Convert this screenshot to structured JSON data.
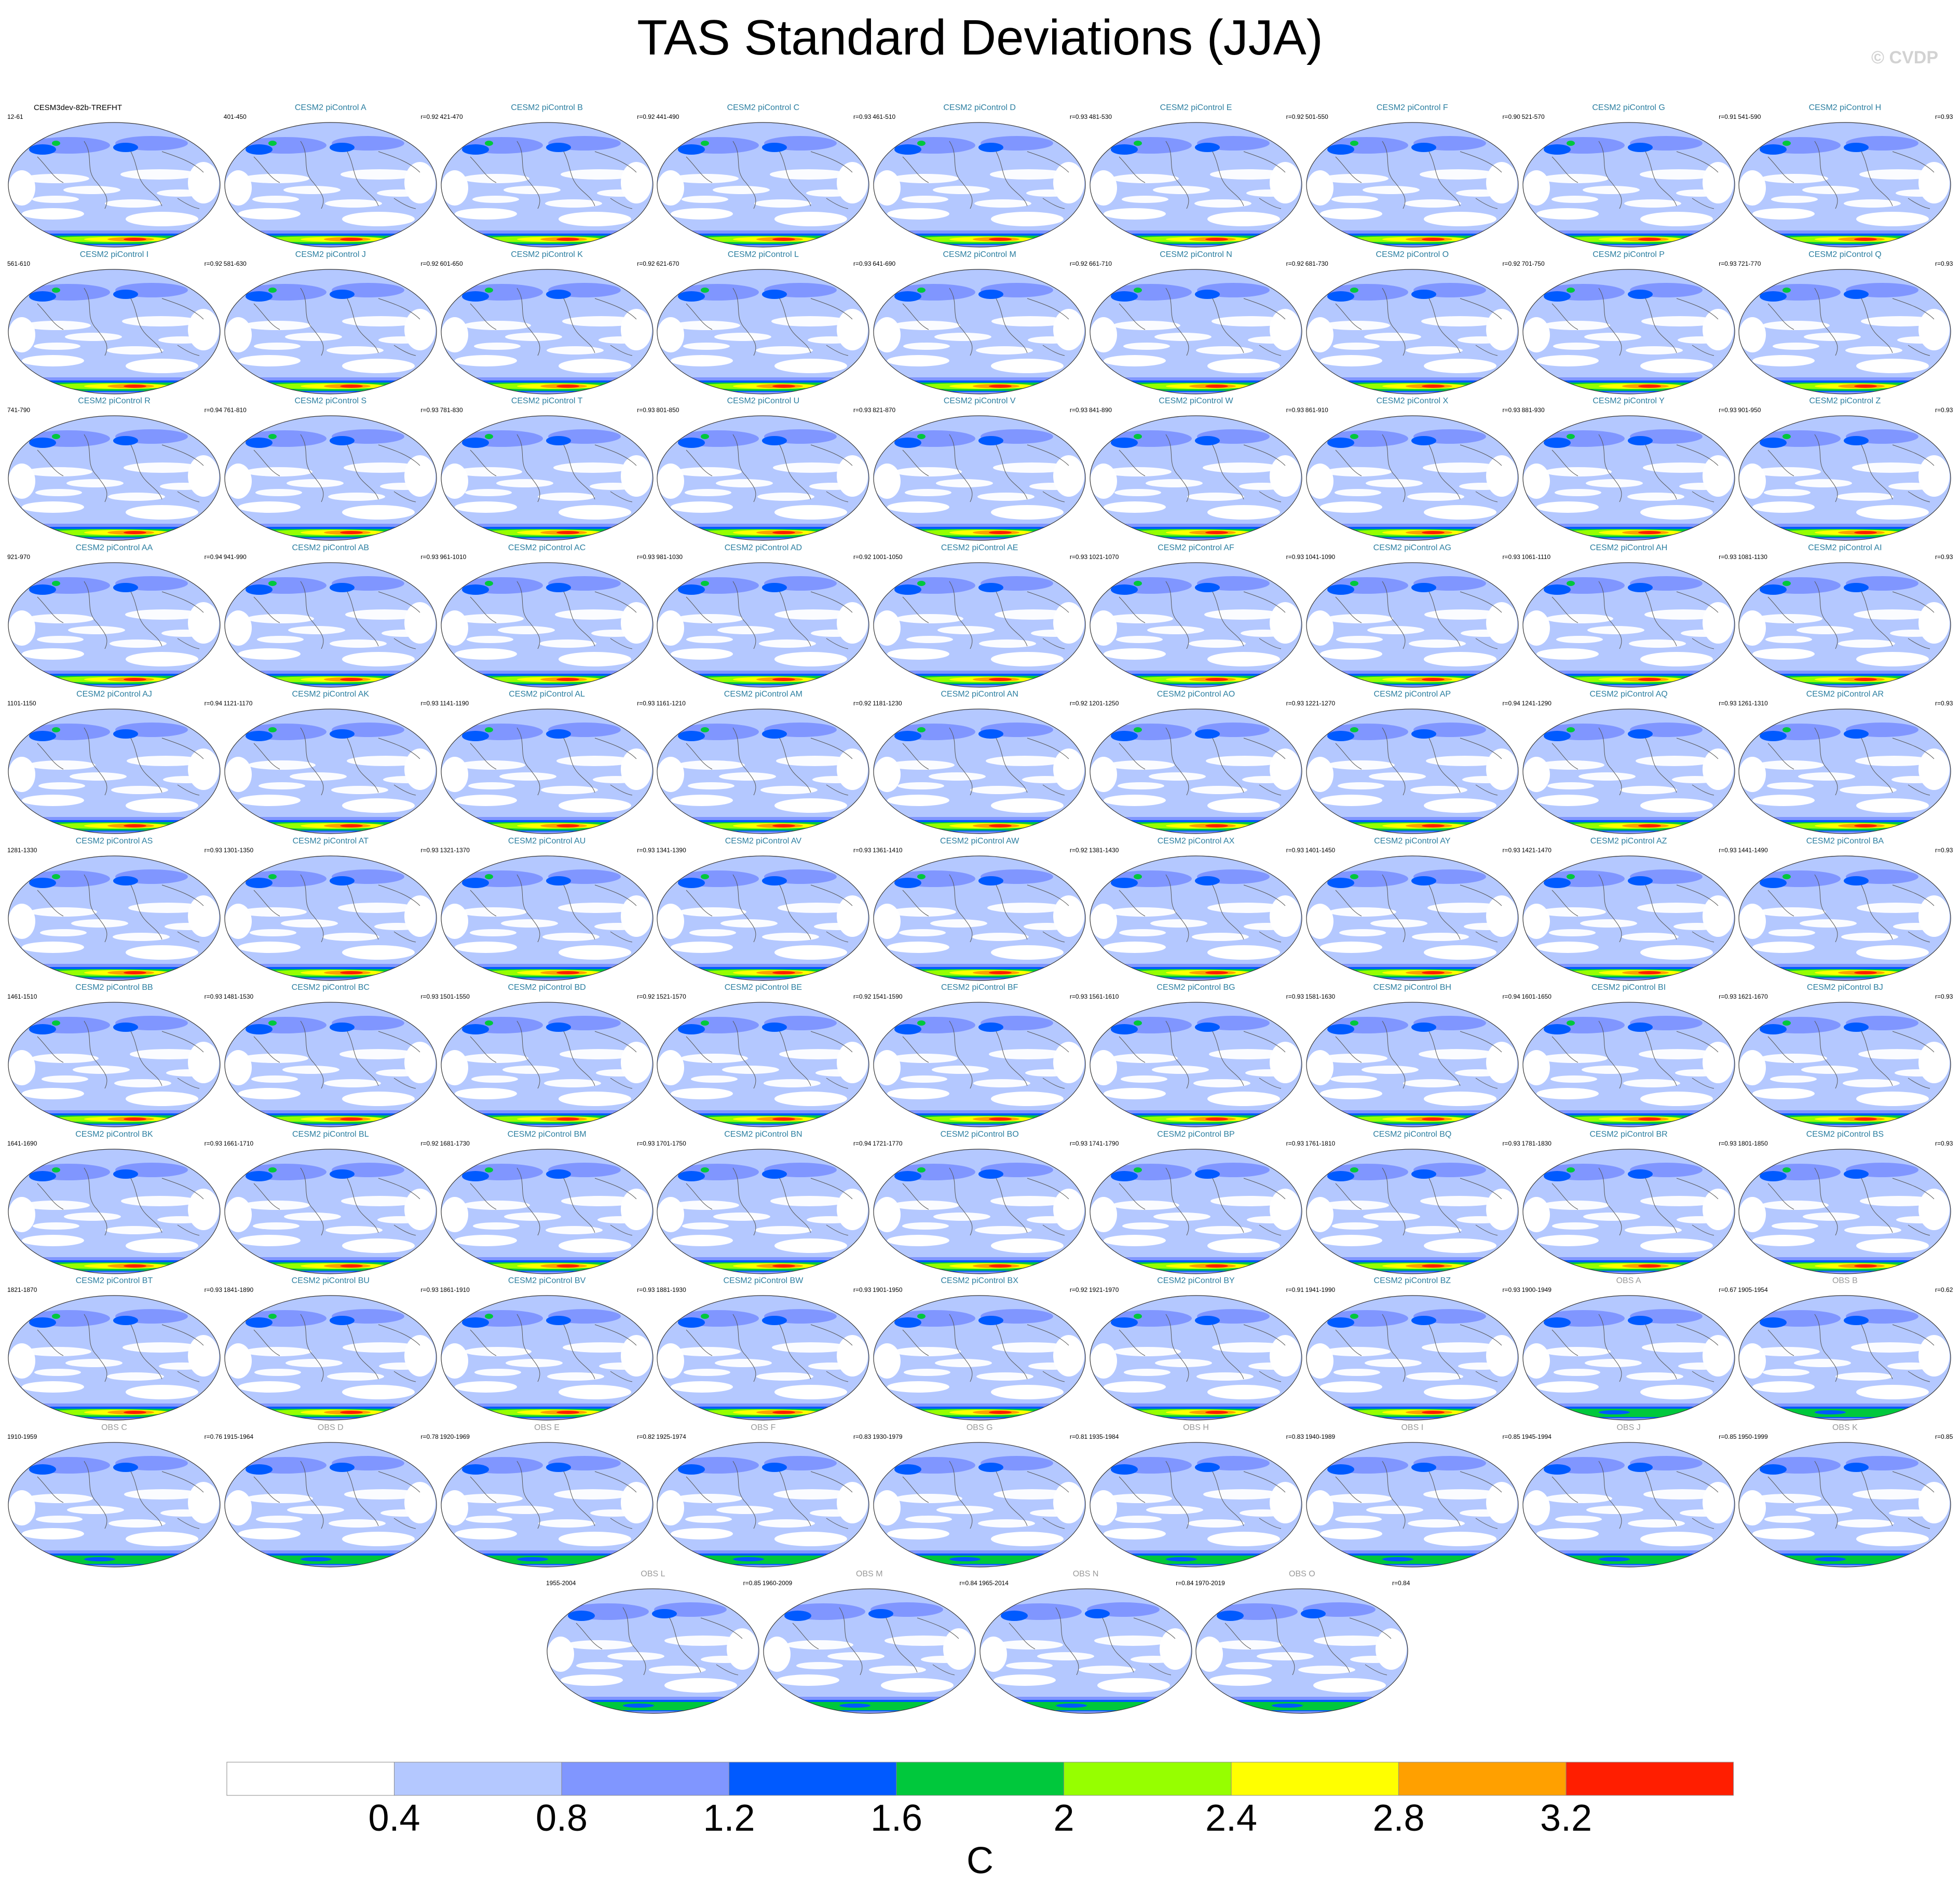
{
  "title": "TAS Standard Deviations (JJA)",
  "watermark": "© CVDP",
  "colorbar": {
    "labels": [
      "0.4",
      "0.8",
      "1.2",
      "1.6",
      "2",
      "2.4",
      "2.8",
      "3.2"
    ],
    "unit": "C",
    "colors": [
      "#ffffff",
      "#b4c8ff",
      "#8096ff",
      "#005aff",
      "#00c83c",
      "#96ff00",
      "#ffff00",
      "#ffa000",
      "#ff1e00"
    ]
  },
  "panels": [
    {
      "title": "CESM3dev-82b-TREFHT",
      "years": "12-61",
      "r": ""
    },
    {
      "title": "CESM2 piControl A",
      "years": "401-450",
      "r": "r=0.92"
    },
    {
      "title": "CESM2 piControl B",
      "years": "421-470",
      "r": "r=0.92"
    },
    {
      "title": "CESM2 piControl C",
      "years": "441-490",
      "r": "r=0.93"
    },
    {
      "title": "CESM2 piControl D",
      "years": "461-510",
      "r": "r=0.93"
    },
    {
      "title": "CESM2 piControl E",
      "years": "481-530",
      "r": "r=0.92"
    },
    {
      "title": "CESM2 piControl F",
      "years": "501-550",
      "r": "r=0.90"
    },
    {
      "title": "CESM2 piControl G",
      "years": "521-570",
      "r": "r=0.91"
    },
    {
      "title": "CESM2 piControl H",
      "years": "541-590",
      "r": "r=0.93"
    },
    {
      "title": "CESM2 piControl I",
      "years": "561-610",
      "r": "r=0.92"
    },
    {
      "title": "CESM2 piControl J",
      "years": "581-630",
      "r": "r=0.92"
    },
    {
      "title": "CESM2 piControl K",
      "years": "601-650",
      "r": "r=0.92"
    },
    {
      "title": "CESM2 piControl L",
      "years": "621-670",
      "r": "r=0.93"
    },
    {
      "title": "CESM2 piControl M",
      "years": "641-690",
      "r": "r=0.92"
    },
    {
      "title": "CESM2 piControl N",
      "years": "661-710",
      "r": "r=0.92"
    },
    {
      "title": "CESM2 piControl O",
      "years": "681-730",
      "r": "r=0.92"
    },
    {
      "title": "CESM2 piControl P",
      "years": "701-750",
      "r": "r=0.93"
    },
    {
      "title": "CESM2 piControl Q",
      "years": "721-770",
      "r": "r=0.93"
    },
    {
      "title": "CESM2 piControl R",
      "years": "741-790",
      "r": "r=0.94"
    },
    {
      "title": "CESM2 piControl S",
      "years": "761-810",
      "r": "r=0.93"
    },
    {
      "title": "CESM2 piControl T",
      "years": "781-830",
      "r": "r=0.93"
    },
    {
      "title": "CESM2 piControl U",
      "years": "801-850",
      "r": "r=0.93"
    },
    {
      "title": "CESM2 piControl V",
      "years": "821-870",
      "r": "r=0.93"
    },
    {
      "title": "CESM2 piControl W",
      "years": "841-890",
      "r": "r=0.93"
    },
    {
      "title": "CESM2 piControl X",
      "years": "861-910",
      "r": "r=0.93"
    },
    {
      "title": "CESM2 piControl Y",
      "years": "881-930",
      "r": "r=0.93"
    },
    {
      "title": "CESM2 piControl Z",
      "years": "901-950",
      "r": "r=0.93"
    },
    {
      "title": "CESM2 piControl AA",
      "years": "921-970",
      "r": "r=0.94"
    },
    {
      "title": "CESM2 piControl AB",
      "years": "941-990",
      "r": "r=0.93"
    },
    {
      "title": "CESM2 piControl AC",
      "years": "961-1010",
      "r": "r=0.93"
    },
    {
      "title": "CESM2 piControl AD",
      "years": "981-1030",
      "r": "r=0.92"
    },
    {
      "title": "CESM2 piControl AE",
      "years": "1001-1050",
      "r": "r=0.93"
    },
    {
      "title": "CESM2 piControl AF",
      "years": "1021-1070",
      "r": "r=0.93"
    },
    {
      "title": "CESM2 piControl AG",
      "years": "1041-1090",
      "r": "r=0.93"
    },
    {
      "title": "CESM2 piControl AH",
      "years": "1061-1110",
      "r": "r=0.93"
    },
    {
      "title": "CESM2 piControl AI",
      "years": "1081-1130",
      "r": "r=0.93"
    },
    {
      "title": "CESM2 piControl AJ",
      "years": "1101-1150",
      "r": "r=0.94"
    },
    {
      "title": "CESM2 piControl AK",
      "years": "1121-1170",
      "r": "r=0.93"
    },
    {
      "title": "CESM2 piControl AL",
      "years": "1141-1190",
      "r": "r=0.93"
    },
    {
      "title": "CESM2 piControl AM",
      "years": "1161-1210",
      "r": "r=0.92"
    },
    {
      "title": "CESM2 piControl AN",
      "years": "1181-1230",
      "r": "r=0.92"
    },
    {
      "title": "CESM2 piControl AO",
      "years": "1201-1250",
      "r": "r=0.93"
    },
    {
      "title": "CESM2 piControl AP",
      "years": "1221-1270",
      "r": "r=0.94"
    },
    {
      "title": "CESM2 piControl AQ",
      "years": "1241-1290",
      "r": "r=0.93"
    },
    {
      "title": "CESM2 piControl AR",
      "years": "1261-1310",
      "r": "r=0.93"
    },
    {
      "title": "CESM2 piControl AS",
      "years": "1281-1330",
      "r": "r=0.93"
    },
    {
      "title": "CESM2 piControl AT",
      "years": "1301-1350",
      "r": "r=0.93"
    },
    {
      "title": "CESM2 piControl AU",
      "years": "1321-1370",
      "r": "r=0.93"
    },
    {
      "title": "CESM2 piControl AV",
      "years": "1341-1390",
      "r": "r=0.93"
    },
    {
      "title": "CESM2 piControl AW",
      "years": "1361-1410",
      "r": "r=0.92"
    },
    {
      "title": "CESM2 piControl AX",
      "years": "1381-1430",
      "r": "r=0.93"
    },
    {
      "title": "CESM2 piControl AY",
      "years": "1401-1450",
      "r": "r=0.93"
    },
    {
      "title": "CESM2 piControl AZ",
      "years": "1421-1470",
      "r": "r=0.93"
    },
    {
      "title": "CESM2 piControl BA",
      "years": "1441-1490",
      "r": "r=0.93"
    },
    {
      "title": "CESM2 piControl BB",
      "years": "1461-1510",
      "r": "r=0.93"
    },
    {
      "title": "CESM2 piControl BC",
      "years": "1481-1530",
      "r": "r=0.93"
    },
    {
      "title": "CESM2 piControl BD",
      "years": "1501-1550",
      "r": "r=0.92"
    },
    {
      "title": "CESM2 piControl BE",
      "years": "1521-1570",
      "r": "r=0.92"
    },
    {
      "title": "CESM2 piControl BF",
      "years": "1541-1590",
      "r": "r=0.93"
    },
    {
      "title": "CESM2 piControl BG",
      "years": "1561-1610",
      "r": "r=0.93"
    },
    {
      "title": "CESM2 piControl BH",
      "years": "1581-1630",
      "r": "r=0.94"
    },
    {
      "title": "CESM2 piControl BI",
      "years": "1601-1650",
      "r": "r=0.93"
    },
    {
      "title": "CESM2 piControl BJ",
      "years": "1621-1670",
      "r": "r=0.93"
    },
    {
      "title": "CESM2 piControl BK",
      "years": "1641-1690",
      "r": "r=0.93"
    },
    {
      "title": "CESM2 piControl BL",
      "years": "1661-1710",
      "r": "r=0.92"
    },
    {
      "title": "CESM2 piControl BM",
      "years": "1681-1730",
      "r": "r=0.93"
    },
    {
      "title": "CESM2 piControl BN",
      "years": "1701-1750",
      "r": "r=0.94"
    },
    {
      "title": "CESM2 piControl BO",
      "years": "1721-1770",
      "r": "r=0.93"
    },
    {
      "title": "CESM2 piControl BP",
      "years": "1741-1790",
      "r": "r=0.93"
    },
    {
      "title": "CESM2 piControl BQ",
      "years": "1761-1810",
      "r": "r=0.93"
    },
    {
      "title": "CESM2 piControl BR",
      "years": "1781-1830",
      "r": "r=0.93"
    },
    {
      "title": "CESM2 piControl BS",
      "years": "1801-1850",
      "r": "r=0.93"
    },
    {
      "title": "CESM2 piControl BT",
      "years": "1821-1870",
      "r": "r=0.93"
    },
    {
      "title": "CESM2 piControl BU",
      "years": "1841-1890",
      "r": "r=0.93"
    },
    {
      "title": "CESM2 piControl BV",
      "years": "1861-1910",
      "r": "r=0.93"
    },
    {
      "title": "CESM2 piControl BW",
      "years": "1881-1930",
      "r": "r=0.93"
    },
    {
      "title": "CESM2 piControl BX",
      "years": "1901-1950",
      "r": "r=0.92"
    },
    {
      "title": "CESM2 piControl BY",
      "years": "1921-1970",
      "r": "r=0.91"
    },
    {
      "title": "CESM2 piControl BZ",
      "years": "1941-1990",
      "r": "r=0.93"
    },
    {
      "title": "OBS A",
      "years": "1900-1949",
      "r": "r=0.67"
    },
    {
      "title": "OBS B",
      "years": "1905-1954",
      "r": "r=0.62"
    },
    {
      "title": "OBS C",
      "years": "1910-1959",
      "r": "r=0.76"
    },
    {
      "title": "OBS D",
      "years": "1915-1964",
      "r": "r=0.78"
    },
    {
      "title": "OBS E",
      "years": "1920-1969",
      "r": "r=0.82"
    },
    {
      "title": "OBS F",
      "years": "1925-1974",
      "r": "r=0.83"
    },
    {
      "title": "OBS G",
      "years": "1930-1979",
      "r": "r=0.81"
    },
    {
      "title": "OBS H",
      "years": "1935-1984",
      "r": "r=0.83"
    },
    {
      "title": "OBS I",
      "years": "1940-1989",
      "r": "r=0.85"
    },
    {
      "title": "OBS J",
      "years": "1945-1994",
      "r": "r=0.85"
    },
    {
      "title": "OBS K",
      "years": "1950-1999",
      "r": "r=0.85"
    },
    {
      "title": "OBS L",
      "years": "1955-2004",
      "r": "r=0.85"
    },
    {
      "title": "OBS M",
      "years": "1960-2009",
      "r": "r=0.84"
    },
    {
      "title": "OBS N",
      "years": "1965-2014",
      "r": "r=0.84"
    },
    {
      "title": "OBS O",
      "years": "1970-2019",
      "r": "r=0.84"
    }
  ],
  "chart_data": {
    "type": "heatmap",
    "title": "TAS Standard Deviations (JJA)",
    "projection": "global Robinson map panels",
    "colorbar_levels": [
      0.4,
      0.8,
      1.2,
      1.6,
      2,
      2.4,
      2.8,
      3.2
    ],
    "unit": "C",
    "layout": "10 rows of 9 panels plus 4 centered panels",
    "panel_count": 94
  }
}
